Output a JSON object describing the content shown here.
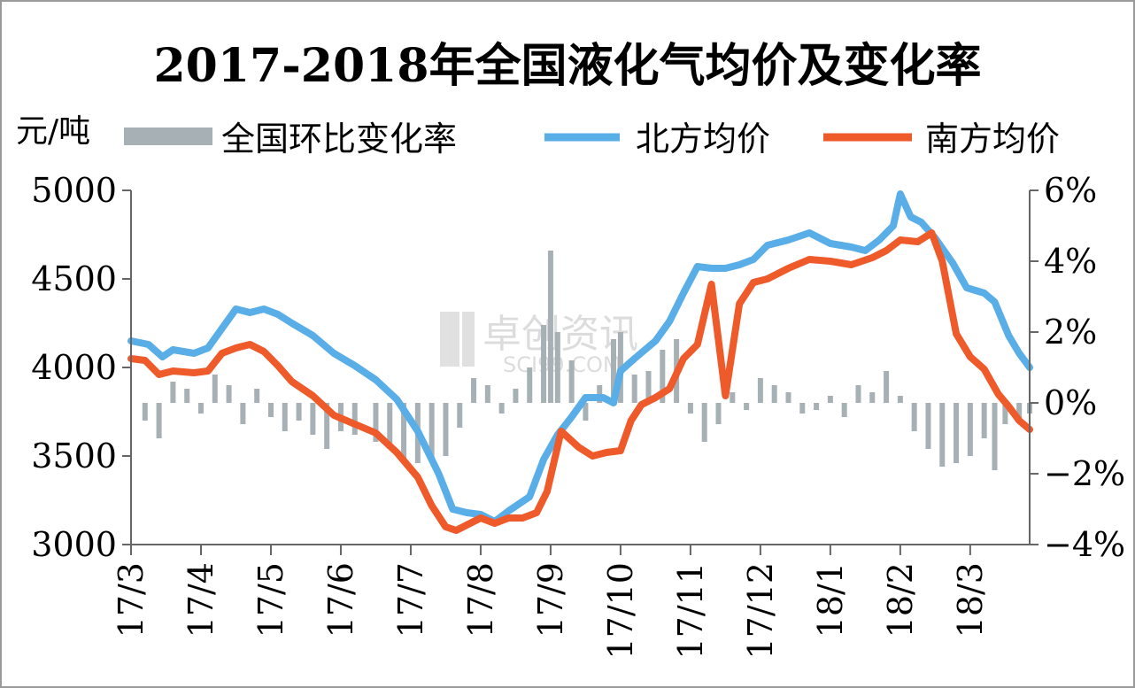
{
  "chart_data": {
    "type": "bar+line",
    "title": "2017-2018年全国液化气均价及变化率",
    "left_unit": "元/吨",
    "watermark": {
      "text": "卓创资讯",
      "sub": "SCI99.COM"
    },
    "x_tick_labels": [
      "17/3",
      "17/4",
      "17/5",
      "17/6",
      "17/7",
      "17/8",
      "17/9",
      "17/10",
      "17/11",
      "17/12",
      "18/1",
      "18/2",
      "18/3"
    ],
    "x_range_months": [
      0,
      12.85
    ],
    "y_left": {
      "ticks": [
        "5000",
        "4500",
        "4000",
        "3500",
        "3000"
      ],
      "range": [
        3000,
        5000
      ]
    },
    "y_right": {
      "ticks": [
        "6%",
        "4%",
        "2%",
        "0%",
        "−2%",
        "−4%"
      ],
      "range": [
        -4,
        6
      ]
    },
    "legend": {
      "placement": "top",
      "items": [
        {
          "name": "全国环比变化率",
          "kind": "bar",
          "color": "#a7b1b5"
        },
        {
          "name": "北方均价",
          "kind": "line",
          "color": "#5aaee8"
        },
        {
          "name": "南方均价",
          "kind": "line",
          "color": "#ee5a2a"
        }
      ]
    },
    "series": [
      {
        "name": "北方均价",
        "axis": "left",
        "color": "#5aaee8",
        "points": [
          [
            0,
            4150
          ],
          [
            0.25,
            4130
          ],
          [
            0.45,
            4060
          ],
          [
            0.6,
            4100
          ],
          [
            0.9,
            4080
          ],
          [
            1.1,
            4110
          ],
          [
            1.3,
            4220
          ],
          [
            1.5,
            4330
          ],
          [
            1.7,
            4310
          ],
          [
            1.9,
            4330
          ],
          [
            2.1,
            4300
          ],
          [
            2.3,
            4250
          ],
          [
            2.6,
            4180
          ],
          [
            2.9,
            4080
          ],
          [
            3.2,
            4010
          ],
          [
            3.5,
            3930
          ],
          [
            3.8,
            3820
          ],
          [
            4.1,
            3640
          ],
          [
            4.4,
            3400
          ],
          [
            4.6,
            3200
          ],
          [
            4.8,
            3180
          ],
          [
            5.0,
            3170
          ],
          [
            5.2,
            3130
          ],
          [
            5.4,
            3190
          ],
          [
            5.7,
            3270
          ],
          [
            5.9,
            3480
          ],
          [
            6.1,
            3620
          ],
          [
            6.3,
            3720
          ],
          [
            6.5,
            3830
          ],
          [
            6.75,
            3830
          ],
          [
            6.9,
            3800
          ],
          [
            7.0,
            3980
          ],
          [
            7.2,
            4050
          ],
          [
            7.5,
            4150
          ],
          [
            7.7,
            4260
          ],
          [
            7.9,
            4420
          ],
          [
            8.1,
            4570
          ],
          [
            8.3,
            4560
          ],
          [
            8.5,
            4560
          ],
          [
            8.7,
            4580
          ],
          [
            8.9,
            4610
          ],
          [
            9.1,
            4690
          ],
          [
            9.4,
            4720
          ],
          [
            9.7,
            4760
          ],
          [
            10.0,
            4700
          ],
          [
            10.3,
            4680
          ],
          [
            10.5,
            4660
          ],
          [
            10.7,
            4720
          ],
          [
            10.9,
            4800
          ],
          [
            11.0,
            4980
          ],
          [
            11.15,
            4850
          ],
          [
            11.3,
            4820
          ],
          [
            11.5,
            4730
          ],
          [
            11.75,
            4590
          ],
          [
            11.95,
            4450
          ],
          [
            12.2,
            4420
          ],
          [
            12.35,
            4370
          ],
          [
            12.55,
            4180
          ],
          [
            12.7,
            4080
          ],
          [
            12.85,
            4000
          ]
        ]
      },
      {
        "name": "南方均价",
        "axis": "left",
        "color": "#ee5a2a",
        "points": [
          [
            0,
            4050
          ],
          [
            0.2,
            4040
          ],
          [
            0.4,
            3960
          ],
          [
            0.6,
            3980
          ],
          [
            0.9,
            3970
          ],
          [
            1.1,
            3980
          ],
          [
            1.3,
            4080
          ],
          [
            1.5,
            4110
          ],
          [
            1.7,
            4130
          ],
          [
            1.9,
            4090
          ],
          [
            2.1,
            4010
          ],
          [
            2.3,
            3920
          ],
          [
            2.6,
            3840
          ],
          [
            2.9,
            3730
          ],
          [
            3.2,
            3680
          ],
          [
            3.5,
            3630
          ],
          [
            3.8,
            3520
          ],
          [
            4.1,
            3380
          ],
          [
            4.3,
            3220
          ],
          [
            4.5,
            3100
          ],
          [
            4.65,
            3080
          ],
          [
            4.8,
            3110
          ],
          [
            5.0,
            3150
          ],
          [
            5.2,
            3120
          ],
          [
            5.4,
            3150
          ],
          [
            5.6,
            3150
          ],
          [
            5.8,
            3180
          ],
          [
            5.95,
            3300
          ],
          [
            6.15,
            3640
          ],
          [
            6.4,
            3550
          ],
          [
            6.6,
            3500
          ],
          [
            6.8,
            3520
          ],
          [
            7.0,
            3530
          ],
          [
            7.15,
            3700
          ],
          [
            7.3,
            3790
          ],
          [
            7.5,
            3830
          ],
          [
            7.7,
            3880
          ],
          [
            7.9,
            4050
          ],
          [
            8.1,
            4130
          ],
          [
            8.3,
            4470
          ],
          [
            8.5,
            3840
          ],
          [
            8.7,
            4360
          ],
          [
            8.9,
            4480
          ],
          [
            9.1,
            4500
          ],
          [
            9.4,
            4560
          ],
          [
            9.7,
            4610
          ],
          [
            10.0,
            4600
          ],
          [
            10.3,
            4580
          ],
          [
            10.6,
            4620
          ],
          [
            10.8,
            4660
          ],
          [
            11.0,
            4720
          ],
          [
            11.25,
            4710
          ],
          [
            11.45,
            4760
          ],
          [
            11.6,
            4600
          ],
          [
            11.8,
            4190
          ],
          [
            12.0,
            4060
          ],
          [
            12.2,
            3990
          ],
          [
            12.4,
            3850
          ],
          [
            12.55,
            3780
          ],
          [
            12.7,
            3700
          ],
          [
            12.85,
            3650
          ]
        ]
      },
      {
        "name": "全国环比变化率",
        "axis": "right",
        "kind": "bar",
        "color": "#a7b1b5",
        "samples": [
          [
            0.2,
            -0.5
          ],
          [
            0.4,
            -1.0
          ],
          [
            0.6,
            0.6
          ],
          [
            0.8,
            0.4
          ],
          [
            1.0,
            -0.3
          ],
          [
            1.2,
            0.8
          ],
          [
            1.4,
            0.5
          ],
          [
            1.6,
            -0.6
          ],
          [
            1.8,
            0.4
          ],
          [
            2.0,
            -0.4
          ],
          [
            2.2,
            -0.8
          ],
          [
            2.4,
            -0.5
          ],
          [
            2.6,
            -0.9
          ],
          [
            2.8,
            -1.3
          ],
          [
            3.0,
            -0.8
          ],
          [
            3.2,
            -0.9
          ],
          [
            3.5,
            -1.1
          ],
          [
            3.7,
            -1.3
          ],
          [
            3.9,
            -1.6
          ],
          [
            4.1,
            -1.7
          ],
          [
            4.3,
            -1.6
          ],
          [
            4.5,
            -1.5
          ],
          [
            4.7,
            -0.7
          ],
          [
            4.9,
            0.7
          ],
          [
            5.1,
            0.5
          ],
          [
            5.3,
            -0.3
          ],
          [
            5.5,
            0.4
          ],
          [
            5.7,
            1.0
          ],
          [
            5.9,
            2.2
          ],
          [
            6.0,
            4.3
          ],
          [
            6.1,
            2.0
          ],
          [
            6.3,
            1.2
          ],
          [
            6.5,
            -0.5
          ],
          [
            6.7,
            0.5
          ],
          [
            6.9,
            1.8
          ],
          [
            7.0,
            2.0
          ],
          [
            7.2,
            0.8
          ],
          [
            7.4,
            0.9
          ],
          [
            7.6,
            1.5
          ],
          [
            7.8,
            1.8
          ],
          [
            8.0,
            -0.3
          ],
          [
            8.2,
            -1.1
          ],
          [
            8.4,
            -0.6
          ],
          [
            8.6,
            0.3
          ],
          [
            8.8,
            -0.2
          ],
          [
            9.0,
            0.7
          ],
          [
            9.2,
            0.5
          ],
          [
            9.4,
            0.3
          ],
          [
            9.6,
            -0.3
          ],
          [
            9.8,
            -0.2
          ],
          [
            10.0,
            0.2
          ],
          [
            10.2,
            -0.4
          ],
          [
            10.4,
            0.5
          ],
          [
            10.6,
            0.3
          ],
          [
            10.8,
            0.9
          ],
          [
            11.0,
            0.2
          ],
          [
            11.2,
            -0.8
          ],
          [
            11.4,
            -1.3
          ],
          [
            11.6,
            -1.8
          ],
          [
            11.8,
            -1.7
          ],
          [
            12.0,
            -1.5
          ],
          [
            12.2,
            -1.0
          ],
          [
            12.35,
            -1.9
          ],
          [
            12.5,
            -0.6
          ],
          [
            12.7,
            -0.5
          ],
          [
            12.85,
            -0.3
          ]
        ]
      }
    ]
  }
}
